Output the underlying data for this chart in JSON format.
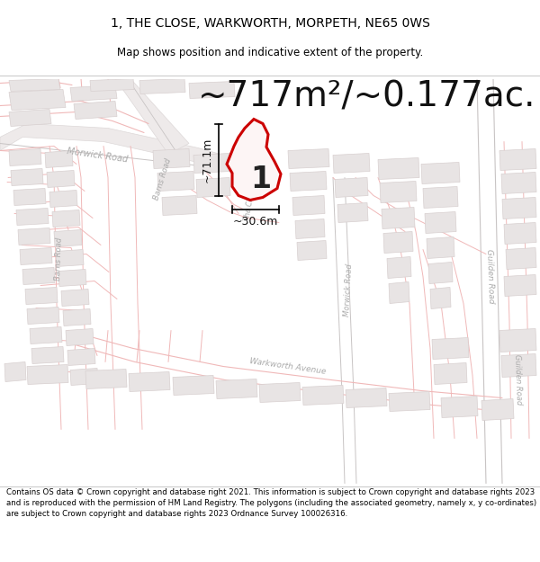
{
  "title_line1": "1, THE CLOSE, WARKWORTH, MORPETH, NE65 0WS",
  "title_line2": "Map shows position and indicative extent of the property.",
  "area_text": "~717m²/~0.177ac.",
  "dim_width": "~30.6m",
  "dim_height": "~71.1m",
  "label_number": "1",
  "footer_text": "Contains OS data © Crown copyright and database right 2021. This information is subject to Crown copyright and database rights 2023 and is reproduced with the permission of HM Land Registry. The polygons (including the associated geometry, namely x, y co-ordinates) are subject to Crown copyright and database rights 2023 Ordnance Survey 100026316.",
  "map_bg": "#ffffff",
  "plot_fill": "#fdf5f5",
  "plot_edge": "#cc0000",
  "road_color": "#f0b8b8",
  "building_color": "#e8e4e4",
  "building_edge": "#d8d0d0",
  "gray_road_color": "#c8c4c4",
  "title_fontsize": 10,
  "subtitle_fontsize": 8.5,
  "area_fontsize": 28,
  "dim_fontsize": 9,
  "label_fontsize": 24,
  "road_label_color": "#aaaaaa",
  "road_label_size": 7
}
